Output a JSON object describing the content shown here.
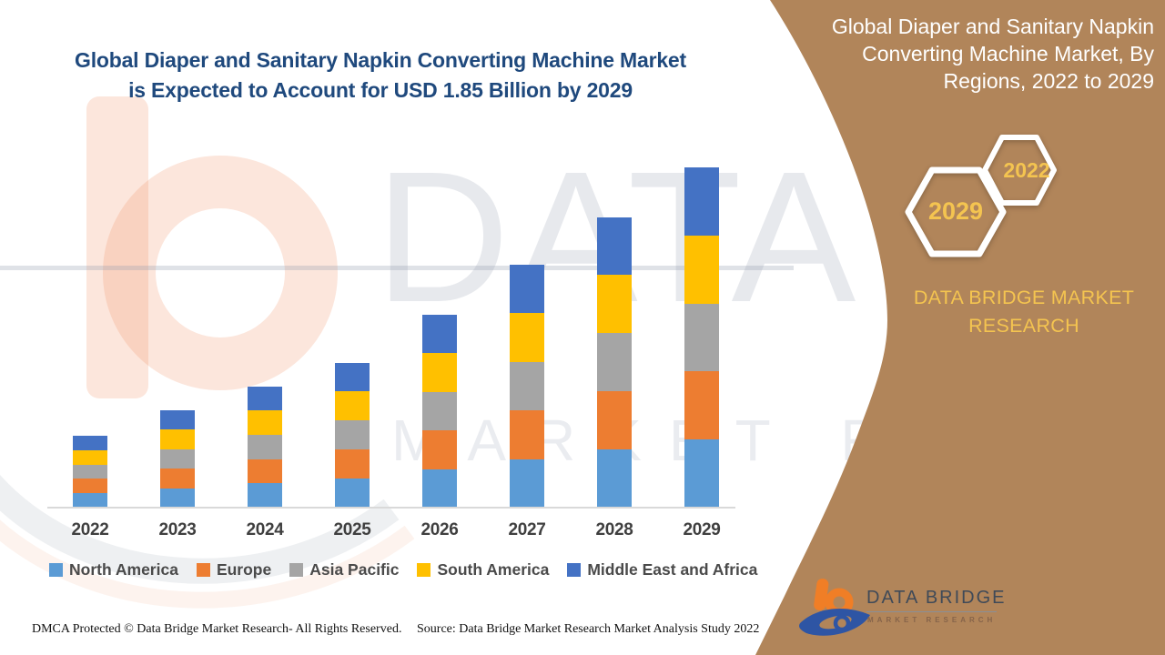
{
  "header": {
    "title_line1": "Global Diaper and Sanitary Napkin Converting Machine Market",
    "title_line2": "is Expected to Account for USD 1.85 Billion by 2029"
  },
  "chart_data": {
    "type": "bar",
    "stacked": true,
    "title": "Global Diaper and Sanitary Napkin Converting Machine Market is Expected to Account for USD 1.85 Billion by 2029",
    "unit": "USD Billion",
    "categories": [
      "2022",
      "2023",
      "2024",
      "2025",
      "2026",
      "2027",
      "2028",
      "2029"
    ],
    "series": [
      {
        "name": "North America",
        "color": "#5B9BD5",
        "values": [
          0.078,
          0.106,
          0.132,
          0.158,
          0.21,
          0.264,
          0.316,
          0.37
        ]
      },
      {
        "name": "Europe",
        "color": "#ED7D31",
        "values": [
          0.078,
          0.106,
          0.132,
          0.158,
          0.21,
          0.264,
          0.316,
          0.37
        ]
      },
      {
        "name": "Asia Pacific",
        "color": "#A5A5A5",
        "values": [
          0.078,
          0.106,
          0.132,
          0.158,
          0.21,
          0.264,
          0.316,
          0.37
        ]
      },
      {
        "name": "South America",
        "color": "#FFC000",
        "values": [
          0.078,
          0.106,
          0.132,
          0.158,
          0.21,
          0.264,
          0.316,
          0.37
        ]
      },
      {
        "name": "Middle East and Africa",
        "color": "#4472C4",
        "values": [
          0.078,
          0.106,
          0.132,
          0.158,
          0.21,
          0.264,
          0.316,
          0.37
        ]
      }
    ],
    "totals": [
      0.39,
      0.53,
      0.66,
      0.79,
      1.05,
      1.32,
      1.58,
      1.85
    ],
    "ylim": [
      0,
      1.85
    ],
    "grid": false,
    "legend_position": "bottom",
    "axis_color": "#D9D9D9",
    "label_color": "#3F3F3F"
  },
  "sidebar": {
    "background_color": "#B1855A",
    "title_lines": [
      "Global Diaper and Sanitary Napkin",
      "Converting Machine Market, By",
      "Regions, 2022 to 2029"
    ],
    "hexagons": [
      {
        "label": "2029"
      },
      {
        "label": "2022"
      }
    ],
    "accent_gold": "#F4C450",
    "brand_line1": "DATA BRIDGE MARKET",
    "brand_line2": "RESEARCH",
    "logo": {
      "name": "DATA BRIDGE",
      "tagline": "MARKET RESEARCH"
    }
  },
  "watermark": {
    "line1": "DATA BRIDGE",
    "line2": "MARKET RESEARCH"
  },
  "footer": {
    "dmca": "DMCA Protected © Data Bridge Market Research- All Rights Reserved.",
    "source": "Source: Data Bridge Market Research Market Analysis Study 2022"
  }
}
